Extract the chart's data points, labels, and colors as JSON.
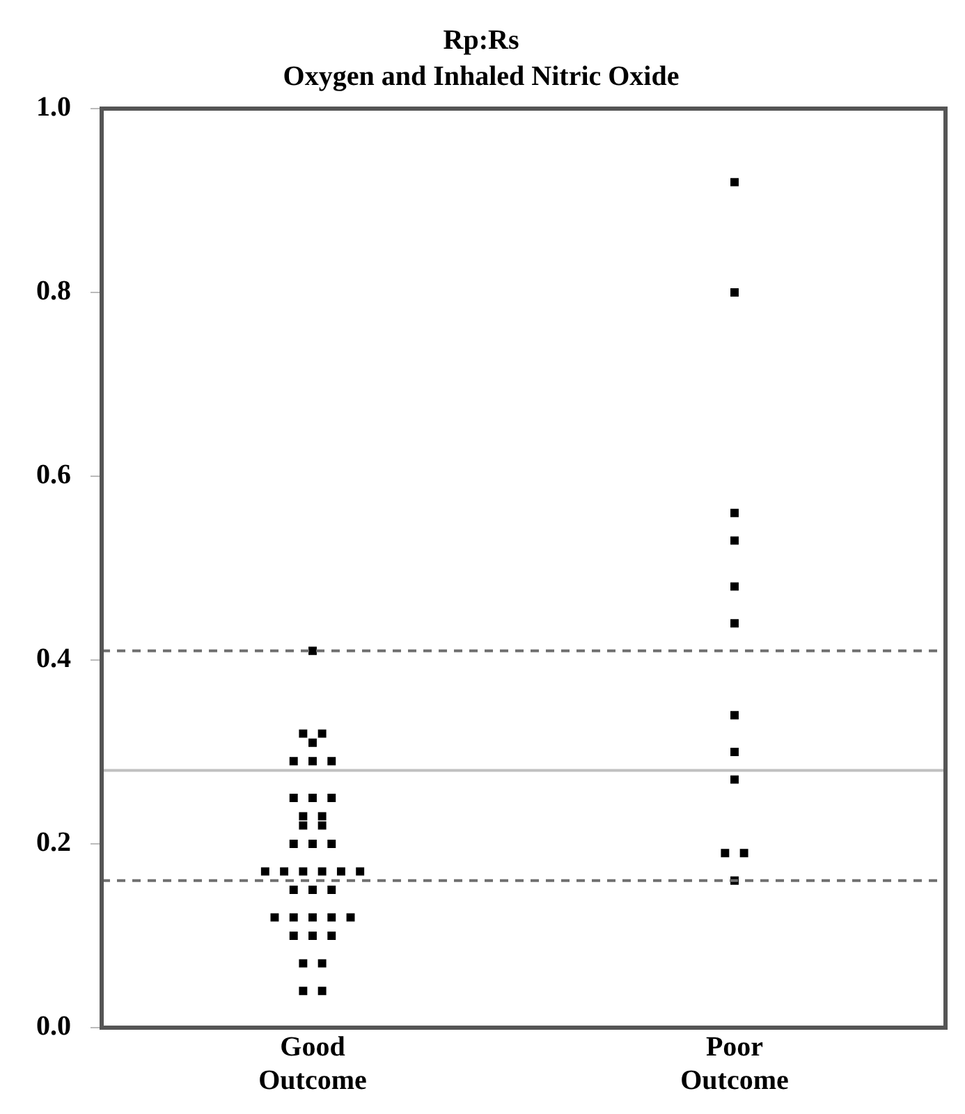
{
  "chart_data": {
    "type": "scatter",
    "title": "Rp:Rs",
    "subtitle": "Oxygen and Inhaled Nitric Oxide",
    "categories": [
      "Good Outcome",
      "Poor Outcome"
    ],
    "series": [
      {
        "color": "#000000",
        "x": [
          "Good Outcome",
          "Good Outcome",
          "Good Outcome",
          "Good Outcome",
          "Good Outcome",
          "Good Outcome",
          "Good Outcome",
          "Good Outcome",
          "Good Outcome",
          "Good Outcome",
          "Good Outcome",
          "Good Outcome",
          "Good Outcome",
          "Good Outcome",
          "Good Outcome",
          "Good Outcome",
          "Good Outcome",
          "Good Outcome",
          "Good Outcome",
          "Good Outcome",
          "Good Outcome",
          "Good Outcome",
          "Good Outcome",
          "Good Outcome",
          "Good Outcome",
          "Good Outcome",
          "Good Outcome",
          "Good Outcome",
          "Good Outcome",
          "Good Outcome",
          "Good Outcome",
          "Good Outcome",
          "Good Outcome",
          "Good Outcome",
          "Good Outcome",
          "Good Outcome",
          "Good Outcome",
          "Good Outcome"
        ],
        "values": [
          0.41,
          0.32,
          0.32,
          0.31,
          0.29,
          0.29,
          0.29,
          0.25,
          0.25,
          0.25,
          0.23,
          0.23,
          0.22,
          0.22,
          0.2,
          0.2,
          0.2,
          0.17,
          0.17,
          0.17,
          0.17,
          0.17,
          0.17,
          0.15,
          0.15,
          0.15,
          0.12,
          0.12,
          0.12,
          0.12,
          0.12,
          0.1,
          0.1,
          0.1,
          0.07,
          0.07,
          0.04,
          0.04
        ]
      },
      {
        "color": "#000000",
        "x": [
          "Poor Outcome",
          "Poor Outcome",
          "Poor Outcome",
          "Poor Outcome",
          "Poor Outcome",
          "Poor Outcome",
          "Poor Outcome",
          "Poor Outcome",
          "Poor Outcome",
          "Poor Outcome",
          "Poor Outcome",
          "Poor Outcome"
        ],
        "values": [
          0.92,
          0.8,
          0.56,
          0.53,
          0.48,
          0.44,
          0.34,
          0.3,
          0.27,
          0.19,
          0.19,
          0.16
        ]
      }
    ],
    "ylim": [
      0,
      1
    ],
    "yticks": [
      {
        "value": 0,
        "label": "0.0"
      },
      0.2,
      0.4,
      0.6,
      0.8,
      {
        "value": 1,
        "label": "1.0"
      }
    ],
    "ref_lines": [
      {
        "axis": "y",
        "value": 0.41,
        "color": "#707070",
        "line_style": "dashed"
      },
      {
        "axis": "y",
        "value": 0.28,
        "color": "#c0c0c0",
        "line_style": "solid"
      },
      {
        "axis": "y",
        "value": 0.16,
        "color": "#707070",
        "line_style": "dashed"
      }
    ],
    "marker": "square",
    "grid": false,
    "legend": false
  }
}
